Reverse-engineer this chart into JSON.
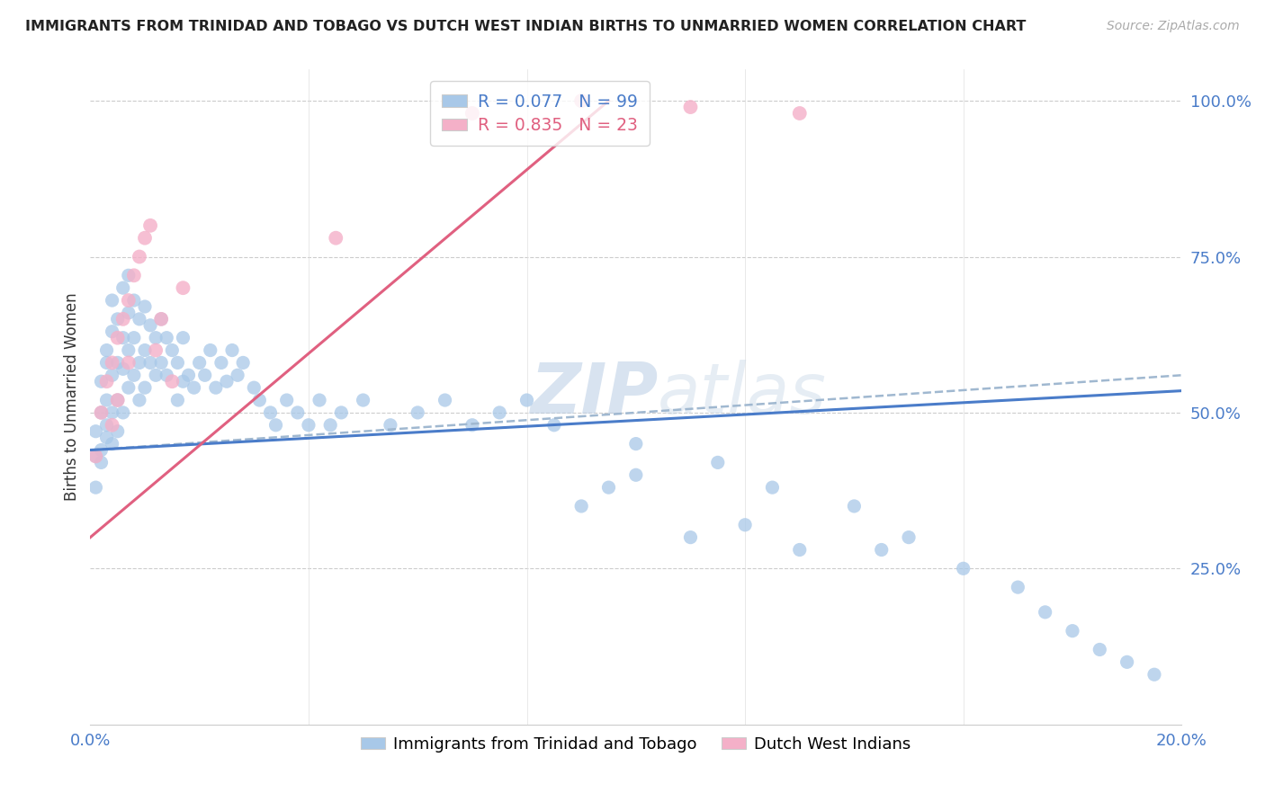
{
  "title": "IMMIGRANTS FROM TRINIDAD AND TOBAGO VS DUTCH WEST INDIAN BIRTHS TO UNMARRIED WOMEN CORRELATION CHART",
  "source": "Source: ZipAtlas.com",
  "ylabel": "Births to Unmarried Women",
  "legend_labels": [
    "Immigrants from Trinidad and Tobago",
    "Dutch West Indians"
  ],
  "r1": 0.077,
  "n1": 99,
  "r2": 0.835,
  "n2": 23,
  "xmin": 0.0,
  "xmax": 0.2,
  "ymin": 0.0,
  "ymax": 1.05,
  "xticks": [
    0.0,
    0.04,
    0.08,
    0.12,
    0.16,
    0.2
  ],
  "xticklabels": [
    "0.0%",
    "",
    "",
    "",
    "",
    "20.0%"
  ],
  "yticks": [
    0.0,
    0.25,
    0.5,
    0.75,
    1.0
  ],
  "yticklabels": [
    "",
    "25.0%",
    "50.0%",
    "75.0%",
    "100.0%"
  ],
  "color_blue": "#a8c8e8",
  "color_pink": "#f4b0c8",
  "color_blue_line": "#4a7cc9",
  "color_pink_line": "#e06080",
  "color_dashed": "#a0b8d0",
  "watermark_zip": "ZIP",
  "watermark_atlas": "atlas",
  "blue_scatter_x": [
    0.001,
    0.001,
    0.001,
    0.002,
    0.002,
    0.002,
    0.002,
    0.003,
    0.003,
    0.003,
    0.003,
    0.003,
    0.004,
    0.004,
    0.004,
    0.004,
    0.004,
    0.005,
    0.005,
    0.005,
    0.005,
    0.006,
    0.006,
    0.006,
    0.006,
    0.007,
    0.007,
    0.007,
    0.007,
    0.008,
    0.008,
    0.008,
    0.009,
    0.009,
    0.009,
    0.01,
    0.01,
    0.01,
    0.011,
    0.011,
    0.012,
    0.012,
    0.013,
    0.013,
    0.014,
    0.014,
    0.015,
    0.016,
    0.016,
    0.017,
    0.017,
    0.018,
    0.019,
    0.02,
    0.021,
    0.022,
    0.023,
    0.024,
    0.025,
    0.026,
    0.027,
    0.028,
    0.03,
    0.031,
    0.033,
    0.034,
    0.036,
    0.038,
    0.04,
    0.042,
    0.044,
    0.046,
    0.05,
    0.055,
    0.06,
    0.065,
    0.07,
    0.075,
    0.08,
    0.085,
    0.09,
    0.095,
    0.1,
    0.11,
    0.12,
    0.13,
    0.14,
    0.15,
    0.16,
    0.17,
    0.175,
    0.18,
    0.185,
    0.19,
    0.195,
    0.1,
    0.115,
    0.125,
    0.145
  ],
  "blue_scatter_y": [
    0.43,
    0.47,
    0.38,
    0.5,
    0.44,
    0.55,
    0.42,
    0.6,
    0.52,
    0.48,
    0.46,
    0.58,
    0.63,
    0.56,
    0.5,
    0.45,
    0.68,
    0.65,
    0.58,
    0.52,
    0.47,
    0.7,
    0.62,
    0.57,
    0.5,
    0.72,
    0.66,
    0.6,
    0.54,
    0.68,
    0.62,
    0.56,
    0.65,
    0.58,
    0.52,
    0.67,
    0.6,
    0.54,
    0.64,
    0.58,
    0.62,
    0.56,
    0.65,
    0.58,
    0.62,
    0.56,
    0.6,
    0.58,
    0.52,
    0.62,
    0.55,
    0.56,
    0.54,
    0.58,
    0.56,
    0.6,
    0.54,
    0.58,
    0.55,
    0.6,
    0.56,
    0.58,
    0.54,
    0.52,
    0.5,
    0.48,
    0.52,
    0.5,
    0.48,
    0.52,
    0.48,
    0.5,
    0.52,
    0.48,
    0.5,
    0.52,
    0.48,
    0.5,
    0.52,
    0.48,
    0.35,
    0.38,
    0.4,
    0.3,
    0.32,
    0.28,
    0.35,
    0.3,
    0.25,
    0.22,
    0.18,
    0.15,
    0.12,
    0.1,
    0.08,
    0.45,
    0.42,
    0.38,
    0.28
  ],
  "pink_scatter_x": [
    0.001,
    0.002,
    0.003,
    0.004,
    0.004,
    0.005,
    0.005,
    0.006,
    0.007,
    0.007,
    0.008,
    0.009,
    0.01,
    0.011,
    0.012,
    0.013,
    0.015,
    0.017,
    0.045,
    0.07,
    0.09,
    0.11,
    0.13
  ],
  "pink_scatter_y": [
    0.43,
    0.5,
    0.55,
    0.58,
    0.48,
    0.62,
    0.52,
    0.65,
    0.68,
    0.58,
    0.72,
    0.75,
    0.78,
    0.8,
    0.6,
    0.65,
    0.55,
    0.7,
    0.78,
    0.98,
    1.0,
    0.99,
    0.98
  ],
  "blue_line_x": [
    0.0,
    0.2
  ],
  "blue_line_y": [
    0.44,
    0.535
  ],
  "pink_line_x": [
    0.0,
    0.095
  ],
  "pink_line_y": [
    0.3,
    1.0
  ],
  "dashed_line_x": [
    0.0,
    0.2
  ],
  "dashed_line_y": [
    0.44,
    0.56
  ]
}
